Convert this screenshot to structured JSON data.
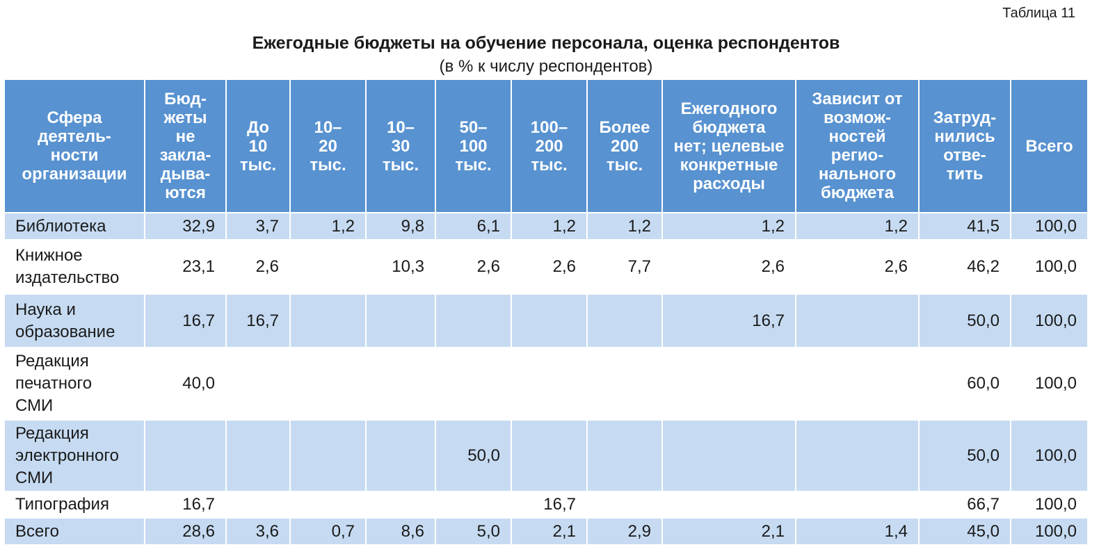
{
  "caption": "Таблица 11",
  "title": "Ежегодные бюджеты на обучение персонала, оценка респондентов",
  "subtitle": "(в % к числу респондентов)",
  "table": {
    "header": [
      "Сфера\nдеятель-\nности\nорганизации",
      "Бюд-\nжеты\nне\nзакла-\nдыва-\nются",
      "До\n10\nтыс.",
      "10–\n20\nтыс.",
      "10–\n30\nтыс.",
      "50–\n100\nтыс.",
      "100–\n200\nтыс.",
      "Более\n200\nтыс.",
      "Ежегодного\nбюджета\nнет; целевые\nконкретные\nрасходы",
      "Зависит от\nвозмож-\nностей\nрегио-\nнального\nбюджета",
      "Затруд-\nнились\nотве-\nтить",
      "Всего"
    ],
    "rows": [
      [
        "Библиотека",
        "32,9",
        "3,7",
        "1,2",
        "9,8",
        "6,1",
        "1,2",
        "1,2",
        "1,2",
        "1,2",
        "41,5",
        "100,0"
      ],
      [
        "Книжное\nиздательство",
        "23,1",
        "2,6",
        null,
        "10,3",
        "2,6",
        "2,6",
        "7,7",
        "2,6",
        "2,6",
        "46,2",
        "100,0"
      ],
      [
        "Наука и\nобразование",
        "16,7",
        "16,7",
        null,
        null,
        null,
        null,
        null,
        "16,7",
        null,
        "50,0",
        "100,0"
      ],
      [
        "Редакция\nпечатного\nСМИ",
        "40,0",
        null,
        null,
        null,
        null,
        null,
        null,
        null,
        null,
        "60,0",
        "100,0"
      ],
      [
        "Редакция\nэлектронного\nСМИ",
        null,
        null,
        null,
        null,
        "50,0",
        null,
        null,
        null,
        null,
        "50,0",
        "100,0"
      ],
      [
        "Типография",
        "16,7",
        null,
        null,
        null,
        null,
        "16,7",
        null,
        null,
        null,
        "66,7",
        "100,0"
      ],
      [
        "Всего",
        "28,6",
        "3,6",
        "0,7",
        "8,6",
        "5,0",
        "2,1",
        "2,9",
        "2,1",
        "1,4",
        "45,0",
        "100,0"
      ]
    ]
  }
}
